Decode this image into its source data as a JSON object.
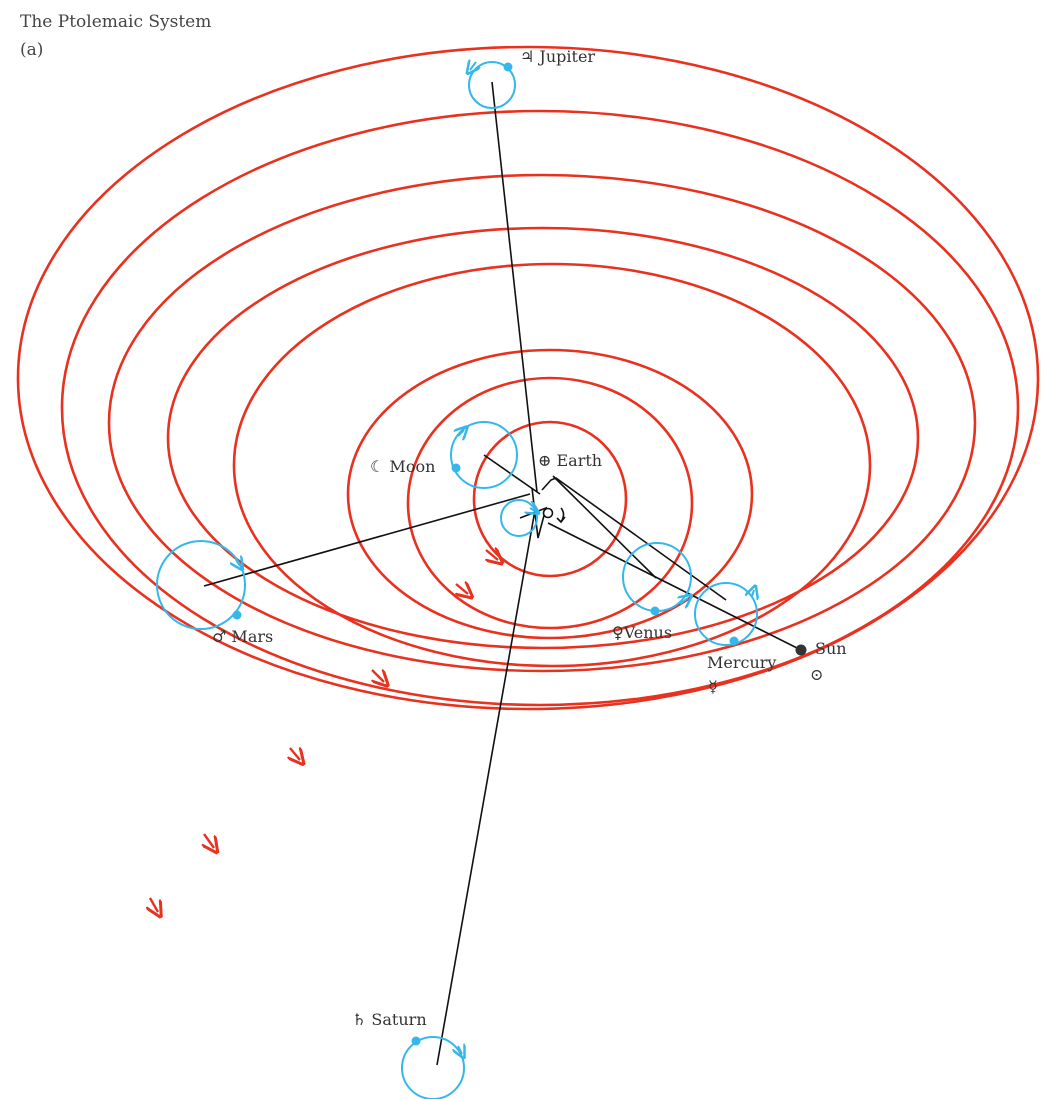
{
  "header": {
    "title": "The Ptolemaic System",
    "sublabel": "(a)"
  },
  "labels": {
    "jupiter": "♃ Jupiter",
    "moon": "☾ Moon",
    "earth": "⊕ Earth",
    "mars": "♂ Mars",
    "venus": "♀Venus",
    "mercury": "Mercury",
    "mercury_symbol": "☿",
    "sun": "Sun",
    "sun_symbol": "⊙",
    "saturn": "♄ Saturn"
  },
  "colors": {
    "deferent": "#e8311f",
    "epicycle": "#35b7ec",
    "spoke": "#111111"
  }
}
